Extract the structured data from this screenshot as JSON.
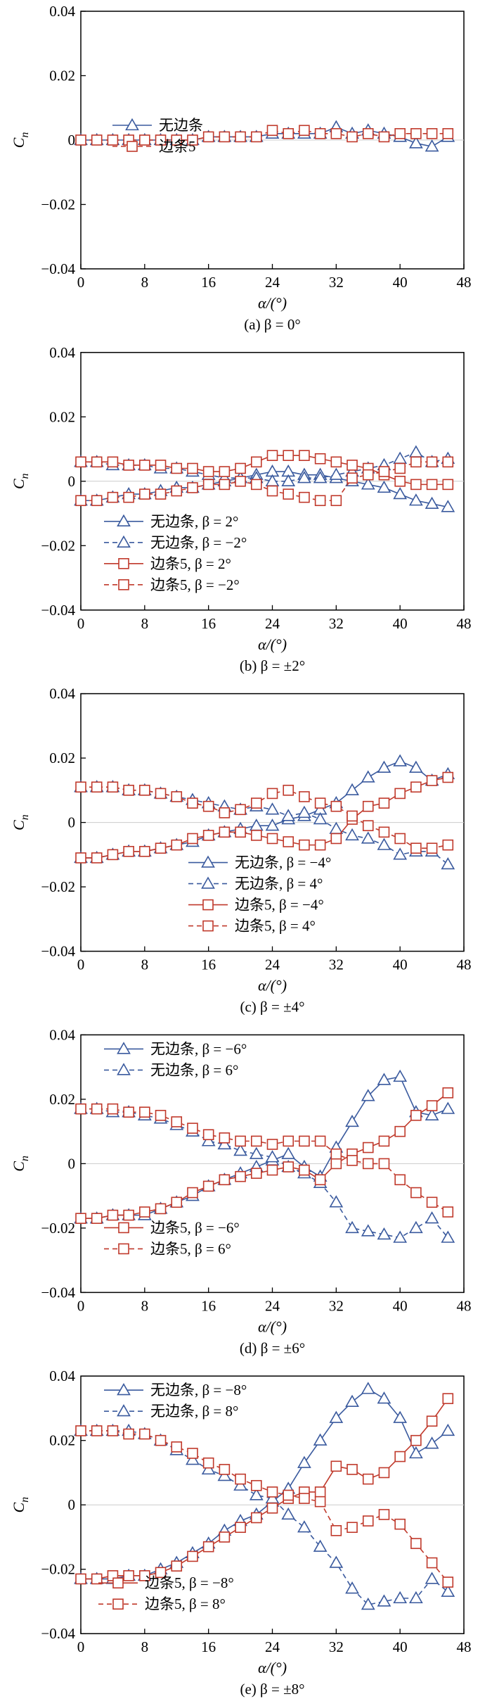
{
  "colors": {
    "blue": "#3a5a9e",
    "red": "#c0392b",
    "axis": "#000000"
  },
  "chart_data": [
    {
      "type": "line",
      "panel_caption": "(a) β = 0°",
      "xlabel": "α/(°)",
      "ylabel": "Cn",
      "xlim": [
        0,
        48
      ],
      "ylim": [
        -0.04,
        0.04
      ],
      "xticks": [
        "0",
        "8",
        "16",
        "24",
        "32",
        "40",
        "48"
      ],
      "yticks": [
        "-0.04",
        "-0.02",
        "0",
        "0.02",
        "0.04"
      ],
      "legend_location": "left-middle",
      "x": [
        0,
        2,
        4,
        6,
        8,
        10,
        12,
        14,
        16,
        18,
        20,
        22,
        24,
        26,
        28,
        30,
        32,
        34,
        36,
        38,
        40,
        42,
        44,
        46
      ],
      "series": [
        {
          "name": "无边条",
          "color": "blue",
          "marker": "triangle",
          "dash": "solid",
          "values": [
            0.0,
            0.0,
            0.0,
            0.0,
            0.0,
            0.0,
            0.0,
            0.0,
            0.001,
            0.001,
            0.001,
            0.001,
            0.002,
            0.002,
            0.002,
            0.002,
            0.004,
            0.002,
            0.003,
            0.002,
            0.001,
            -0.001,
            -0.002,
            0.001
          ]
        },
        {
          "name": "边条5",
          "color": "red",
          "marker": "square",
          "dash": "dashed",
          "values": [
            0.0,
            0.0,
            0.0,
            0.0,
            0.0,
            0.0,
            0.0,
            0.0,
            0.001,
            0.001,
            0.001,
            0.001,
            0.003,
            0.002,
            0.003,
            0.002,
            0.002,
            0.001,
            0.002,
            0.001,
            0.002,
            0.002,
            0.002,
            0.002
          ]
        }
      ]
    },
    {
      "type": "line",
      "panel_caption": "(b) β = ±2°",
      "xlabel": "α/(°)",
      "ylabel": "Cn",
      "xlim": [
        0,
        48
      ],
      "ylim": [
        -0.04,
        0.04
      ],
      "xticks": [
        "0",
        "8",
        "16",
        "24",
        "32",
        "40",
        "48"
      ],
      "yticks": [
        "-0.04",
        "-0.02",
        "0",
        "0.02",
        "0.04"
      ],
      "legend_location": "bottom-left",
      "x": [
        0,
        2,
        4,
        6,
        8,
        10,
        12,
        14,
        16,
        18,
        20,
        22,
        24,
        26,
        28,
        30,
        32,
        34,
        36,
        38,
        40,
        42,
        44,
        46
      ],
      "series": [
        {
          "name": "无边条, β = 2°",
          "color": "blue",
          "marker": "triangle",
          "dash": "solid",
          "values": [
            -0.006,
            -0.006,
            -0.005,
            -0.004,
            -0.004,
            -0.003,
            -0.002,
            -0.002,
            -0.001,
            0.0,
            0.001,
            0.002,
            0.003,
            0.003,
            0.002,
            0.002,
            0.001,
            0.0,
            -0.001,
            -0.002,
            -0.004,
            -0.006,
            -0.007,
            -0.008
          ]
        },
        {
          "name": "无边条, β = −2°",
          "color": "blue",
          "marker": "triangle",
          "dash": "dashed",
          "values": [
            0.006,
            0.006,
            0.005,
            0.005,
            0.005,
            0.004,
            0.004,
            0.003,
            0.002,
            0.001,
            0.001,
            0.001,
            0.0,
            0.0,
            0.001,
            0.001,
            0.002,
            0.003,
            0.004,
            0.005,
            0.007,
            0.009,
            0.006,
            0.007
          ]
        },
        {
          "name": "边条5, β = 2°",
          "color": "red",
          "marker": "square",
          "dash": "solid",
          "values": [
            0.006,
            0.006,
            0.006,
            0.005,
            0.005,
            0.005,
            0.004,
            0.004,
            0.003,
            0.003,
            0.004,
            0.006,
            0.008,
            0.008,
            0.008,
            0.007,
            0.006,
            0.005,
            0.004,
            0.002,
            0.0,
            -0.001,
            -0.001,
            -0.001
          ]
        },
        {
          "name": "边条5, β = −2°",
          "color": "red",
          "marker": "square",
          "dash": "dashed",
          "values": [
            -0.006,
            -0.006,
            -0.005,
            -0.005,
            -0.004,
            -0.004,
            -0.003,
            -0.002,
            -0.001,
            -0.001,
            0.0,
            -0.001,
            -0.003,
            -0.004,
            -0.005,
            -0.006,
            -0.006,
            0.001,
            0.002,
            0.003,
            0.004,
            0.006,
            0.006,
            0.006
          ]
        }
      ]
    },
    {
      "type": "line",
      "panel_caption": "(c) β = ±4°",
      "xlabel": "α/(°)",
      "ylabel": "Cn",
      "xlim": [
        0,
        48
      ],
      "ylim": [
        -0.04,
        0.04
      ],
      "xticks": [
        "0",
        "8",
        "16",
        "24",
        "32",
        "40",
        "48"
      ],
      "yticks": [
        "-0.04",
        "-0.02",
        "0",
        "0.02",
        "0.04"
      ],
      "legend_location": "bottom-center",
      "x": [
        0,
        2,
        4,
        6,
        8,
        10,
        12,
        14,
        16,
        18,
        20,
        22,
        24,
        26,
        28,
        30,
        32,
        34,
        36,
        38,
        40,
        42,
        44,
        46
      ],
      "series": [
        {
          "name": "无边条, β = −4°",
          "color": "blue",
          "marker": "triangle",
          "dash": "solid",
          "values": [
            -0.011,
            -0.011,
            -0.01,
            -0.009,
            -0.009,
            -0.008,
            -0.007,
            -0.006,
            -0.004,
            -0.003,
            -0.002,
            -0.001,
            -0.001,
            0.001,
            0.002,
            0.004,
            0.006,
            0.01,
            0.014,
            0.017,
            0.019,
            0.017,
            0.013,
            0.015
          ]
        },
        {
          "name": "无边条, β = 4°",
          "color": "blue",
          "marker": "triangle",
          "dash": "dashed",
          "values": [
            0.011,
            0.011,
            0.011,
            0.01,
            0.01,
            0.009,
            0.008,
            0.007,
            0.006,
            0.005,
            0.004,
            0.005,
            0.004,
            0.002,
            0.003,
            0.001,
            -0.002,
            -0.004,
            -0.005,
            -0.007,
            -0.01,
            -0.009,
            -0.009,
            -0.013
          ]
        },
        {
          "name": "边条5, β = −4°",
          "color": "red",
          "marker": "square",
          "dash": "solid",
          "values": [
            -0.011,
            -0.011,
            -0.01,
            -0.009,
            -0.009,
            -0.008,
            -0.007,
            -0.005,
            -0.004,
            -0.003,
            -0.003,
            -0.004,
            -0.005,
            -0.006,
            -0.007,
            -0.007,
            -0.005,
            0.001,
            0.005,
            0.006,
            0.009,
            0.011,
            0.013,
            0.014
          ]
        },
        {
          "name": "边条5, β = 4°",
          "color": "red",
          "marker": "square",
          "dash": "dashed",
          "values": [
            0.011,
            0.011,
            0.011,
            0.01,
            0.01,
            0.009,
            0.008,
            0.006,
            0.005,
            0.003,
            0.004,
            0.006,
            0.009,
            0.01,
            0.008,
            0.006,
            0.005,
            0.002,
            -0.001,
            -0.003,
            -0.005,
            -0.008,
            -0.008,
            -0.007
          ]
        }
      ]
    },
    {
      "type": "line",
      "panel_caption": "(d) β = ±6°",
      "xlabel": "α/(°)",
      "ylabel": "Cn",
      "xlim": [
        0,
        48
      ],
      "ylim": [
        -0.04,
        0.04
      ],
      "xticks": [
        "0",
        "8",
        "16",
        "24",
        "32",
        "40",
        "48"
      ],
      "yticks": [
        "-0.04",
        "-0.02",
        "0",
        "0.02",
        "0.04"
      ],
      "legend_location": "top-left and bottom-left",
      "x": [
        0,
        2,
        4,
        6,
        8,
        10,
        12,
        14,
        16,
        18,
        20,
        22,
        24,
        26,
        28,
        30,
        32,
        34,
        36,
        38,
        40,
        42,
        44,
        46
      ],
      "series": [
        {
          "name": "无边条, β = −6°",
          "color": "blue",
          "marker": "triangle",
          "dash": "solid",
          "values": [
            -0.017,
            -0.017,
            -0.016,
            -0.016,
            -0.016,
            -0.014,
            -0.012,
            -0.01,
            -0.007,
            -0.005,
            -0.003,
            -0.001,
            0.001,
            0.003,
            -0.001,
            -0.004,
            0.005,
            0.013,
            0.021,
            0.026,
            0.027,
            0.016,
            0.015,
            0.017
          ]
        },
        {
          "name": "无边条, β = 6°",
          "color": "blue",
          "marker": "triangle",
          "dash": "dashed",
          "values": [
            0.017,
            0.017,
            0.016,
            0.016,
            0.015,
            0.014,
            0.012,
            0.01,
            0.007,
            0.006,
            0.004,
            0.003,
            0.002,
            -0.001,
            -0.003,
            -0.006,
            -0.012,
            -0.02,
            -0.021,
            -0.022,
            -0.023,
            -0.02,
            -0.017,
            -0.023
          ]
        },
        {
          "name": "边条5, β = −6°",
          "color": "red",
          "marker": "square",
          "dash": "solid",
          "values": [
            -0.017,
            -0.017,
            -0.016,
            -0.016,
            -0.015,
            -0.014,
            -0.012,
            -0.009,
            -0.007,
            -0.005,
            -0.004,
            -0.003,
            -0.002,
            -0.001,
            -0.002,
            -0.005,
            0.0,
            0.003,
            0.005,
            0.007,
            0.01,
            0.015,
            0.018,
            0.022
          ]
        },
        {
          "name": "边条5, β = 6°",
          "color": "red",
          "marker": "square",
          "dash": "dashed",
          "values": [
            0.017,
            0.017,
            0.017,
            0.016,
            0.016,
            0.015,
            0.013,
            0.011,
            0.009,
            0.008,
            0.007,
            0.007,
            0.006,
            0.007,
            0.007,
            0.007,
            0.003,
            0.001,
            0.0,
            0.0,
            -0.005,
            -0.009,
            -0.012,
            -0.015
          ]
        }
      ]
    },
    {
      "type": "line",
      "panel_caption": "(e) β = ±8°",
      "xlabel": "α/(°)",
      "ylabel": "Cn",
      "xlim": [
        0,
        48
      ],
      "ylim": [
        -0.04,
        0.04
      ],
      "xticks": [
        "0",
        "8",
        "16",
        "24",
        "32",
        "40",
        "48"
      ],
      "yticks": [
        "-0.04",
        "-0.02",
        "0",
        "0.02",
        "0.04"
      ],
      "legend_location": "top-left and bottom-left",
      "x": [
        0,
        2,
        4,
        6,
        8,
        10,
        12,
        14,
        16,
        18,
        20,
        22,
        24,
        26,
        28,
        30,
        32,
        34,
        36,
        38,
        40,
        42,
        44,
        46
      ],
      "series": [
        {
          "name": "无边条, β = −8°",
          "color": "blue",
          "marker": "triangle",
          "dash": "solid",
          "values": [
            -0.023,
            -0.023,
            -0.023,
            -0.022,
            -0.022,
            -0.02,
            -0.018,
            -0.015,
            -0.012,
            -0.008,
            -0.005,
            -0.003,
            0.001,
            0.005,
            0.013,
            0.02,
            0.027,
            0.032,
            0.036,
            0.033,
            0.027,
            0.016,
            0.019,
            0.023
          ]
        },
        {
          "name": "无边条, β = 8°",
          "color": "blue",
          "marker": "triangle",
          "dash": "dashed",
          "values": [
            0.023,
            0.023,
            0.023,
            0.023,
            0.022,
            0.02,
            0.017,
            0.014,
            0.011,
            0.009,
            0.006,
            0.003,
            0.002,
            -0.003,
            -0.007,
            -0.013,
            -0.018,
            -0.026,
            -0.031,
            -0.03,
            -0.029,
            -0.029,
            -0.023,
            -0.027
          ]
        },
        {
          "name": "边条5, β = −8°",
          "color": "red",
          "marker": "square",
          "dash": "solid",
          "values": [
            -0.023,
            -0.023,
            -0.022,
            -0.022,
            -0.022,
            -0.021,
            -0.019,
            -0.016,
            -0.013,
            -0.01,
            -0.007,
            -0.004,
            -0.001,
            0.002,
            0.004,
            0.004,
            0.012,
            0.011,
            0.008,
            0.01,
            0.015,
            0.02,
            0.026,
            0.033
          ]
        },
        {
          "name": "边条5, β = 8°",
          "color": "red",
          "marker": "square",
          "dash": "dashed",
          "values": [
            0.023,
            0.023,
            0.023,
            0.022,
            0.022,
            0.02,
            0.018,
            0.016,
            0.013,
            0.011,
            0.008,
            0.006,
            0.004,
            0.003,
            0.002,
            0.001,
            -0.008,
            -0.007,
            -0.005,
            -0.003,
            -0.006,
            -0.012,
            -0.018,
            -0.024
          ]
        }
      ]
    }
  ]
}
